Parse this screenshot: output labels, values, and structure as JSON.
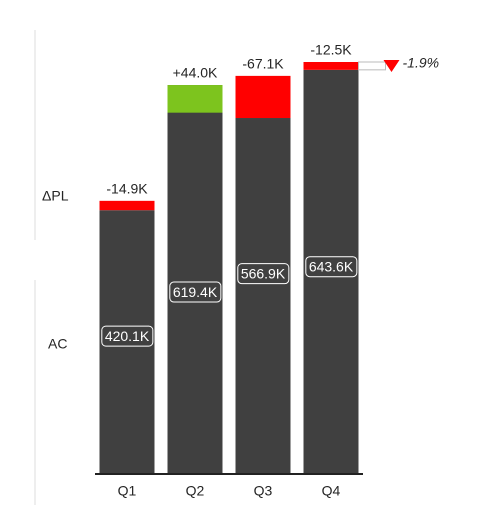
{
  "chart_data": {
    "type": "bar",
    "categories": [
      "Q1",
      "Q2",
      "Q3",
      "Q4"
    ],
    "series": [
      {
        "name": "AC",
        "color": "#404040",
        "values": [
          420.1,
          619.4,
          566.9,
          643.6
        ],
        "value_labels": [
          "420.1K",
          "619.4K",
          "566.9K",
          "643.6K"
        ]
      },
      {
        "name": "ΔPL",
        "values": [
          -14.9,
          44.0,
          -67.1,
          -12.5
        ],
        "value_labels": [
          "-14.9K",
          "+44.0K",
          "-67.1K",
          "-12.5K"
        ]
      }
    ],
    "positive_color": "#7dc41e",
    "negative_color": "#ff0000",
    "annotation": {
      "value": -1.9,
      "label": "-1.9%"
    }
  }
}
